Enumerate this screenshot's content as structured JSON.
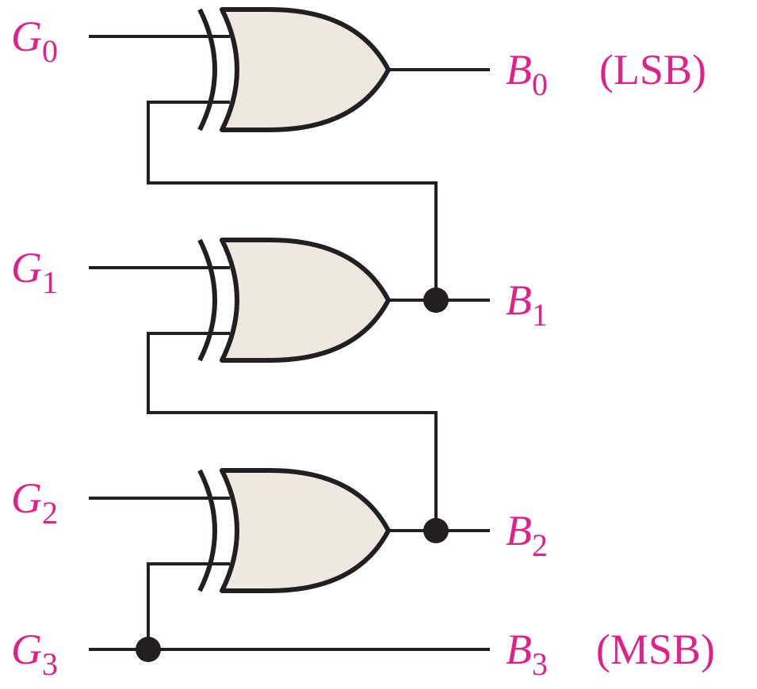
{
  "colors": {
    "label": "#e0218a",
    "line": "#231f20",
    "gate_fill": "#ede9e1"
  },
  "gate_type": "XOR",
  "inputs": [
    {
      "var": "G",
      "sub": "0"
    },
    {
      "var": "G",
      "sub": "1"
    },
    {
      "var": "G",
      "sub": "2"
    },
    {
      "var": "G",
      "sub": "3"
    }
  ],
  "outputs": [
    {
      "var": "B",
      "sub": "0",
      "note": "(LSB)"
    },
    {
      "var": "B",
      "sub": "1",
      "note": ""
    },
    {
      "var": "B",
      "sub": "2",
      "note": ""
    },
    {
      "var": "B",
      "sub": "3",
      "note": "(MSB)"
    }
  ]
}
